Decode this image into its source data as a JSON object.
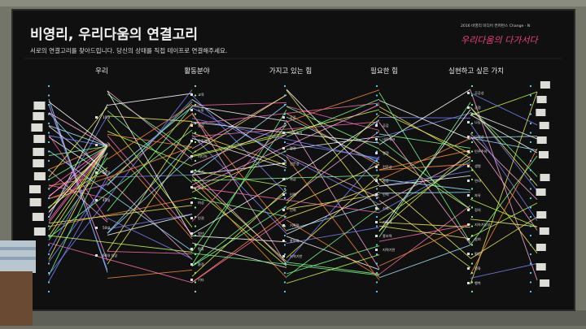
{
  "board": {
    "title": "비영리, 우리다움의 연결고리",
    "subtitle": "서로의 연결고리를 찾아드립니다. 당신의 상태를 직접 테이프로 연결해주세요.",
    "badge": "2016 비영리 미디어 컨퍼런스 Change · N",
    "badge_slogan": "우리다움의 다가서다",
    "background_color": "#101010",
    "title_color": "#f1f1f1"
  },
  "columns": [
    {
      "label": "우리"
    },
    {
      "label": "활동분야"
    },
    {
      "label": "가지고 있는 힘"
    },
    {
      "label": "필요한 힘"
    },
    {
      "label": "실현하고 싶은 가치"
    }
  ],
  "nodes": {
    "col1": [
      "10대",
      "20대",
      "30대",
      "40대",
      "50대",
      "60대 이상"
    ],
    "col2": [
      "교육",
      "노동",
      "농업",
      "문화예술",
      "미디어",
      "복지",
      "아동",
      "여성",
      "인권",
      "청년",
      "평화",
      "환경",
      "기타"
    ],
    "col3": [
      "공감",
      "네트워크",
      "열정",
      "전문성",
      "자금",
      "인력",
      "신뢰",
      "기획력",
      "홍보력",
      "지역기반"
    ],
    "col4": [
      "공감",
      "네트워크",
      "열정",
      "전문성",
      "자금",
      "인력",
      "신뢰",
      "기획력",
      "홍보력",
      "지역기반"
    ],
    "col5": [
      "공공성",
      "공정",
      "나눔",
      "다양성",
      "민주주의",
      "생명",
      "연대",
      "자유",
      "정의",
      "지속가능성",
      "참여",
      "평등",
      "평화",
      "행복"
    ]
  },
  "string_colors": [
    "#f2ee5a",
    "#ff6fb0",
    "#7a86ff",
    "#7dff8c",
    "#ffffff",
    "#ffa6d8",
    "#c8ff4e",
    "#ff8a3d",
    "#9be4ff"
  ]
}
